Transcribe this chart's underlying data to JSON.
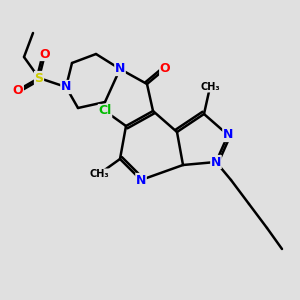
{
  "bg_color": "#e0e0e0",
  "bond_color": "#000000",
  "bond_width": 1.8,
  "atom_colors": {
    "N": "#0000ff",
    "O": "#ff0000",
    "S": "#cccc00",
    "Cl": "#00bb00",
    "C": "#000000"
  }
}
